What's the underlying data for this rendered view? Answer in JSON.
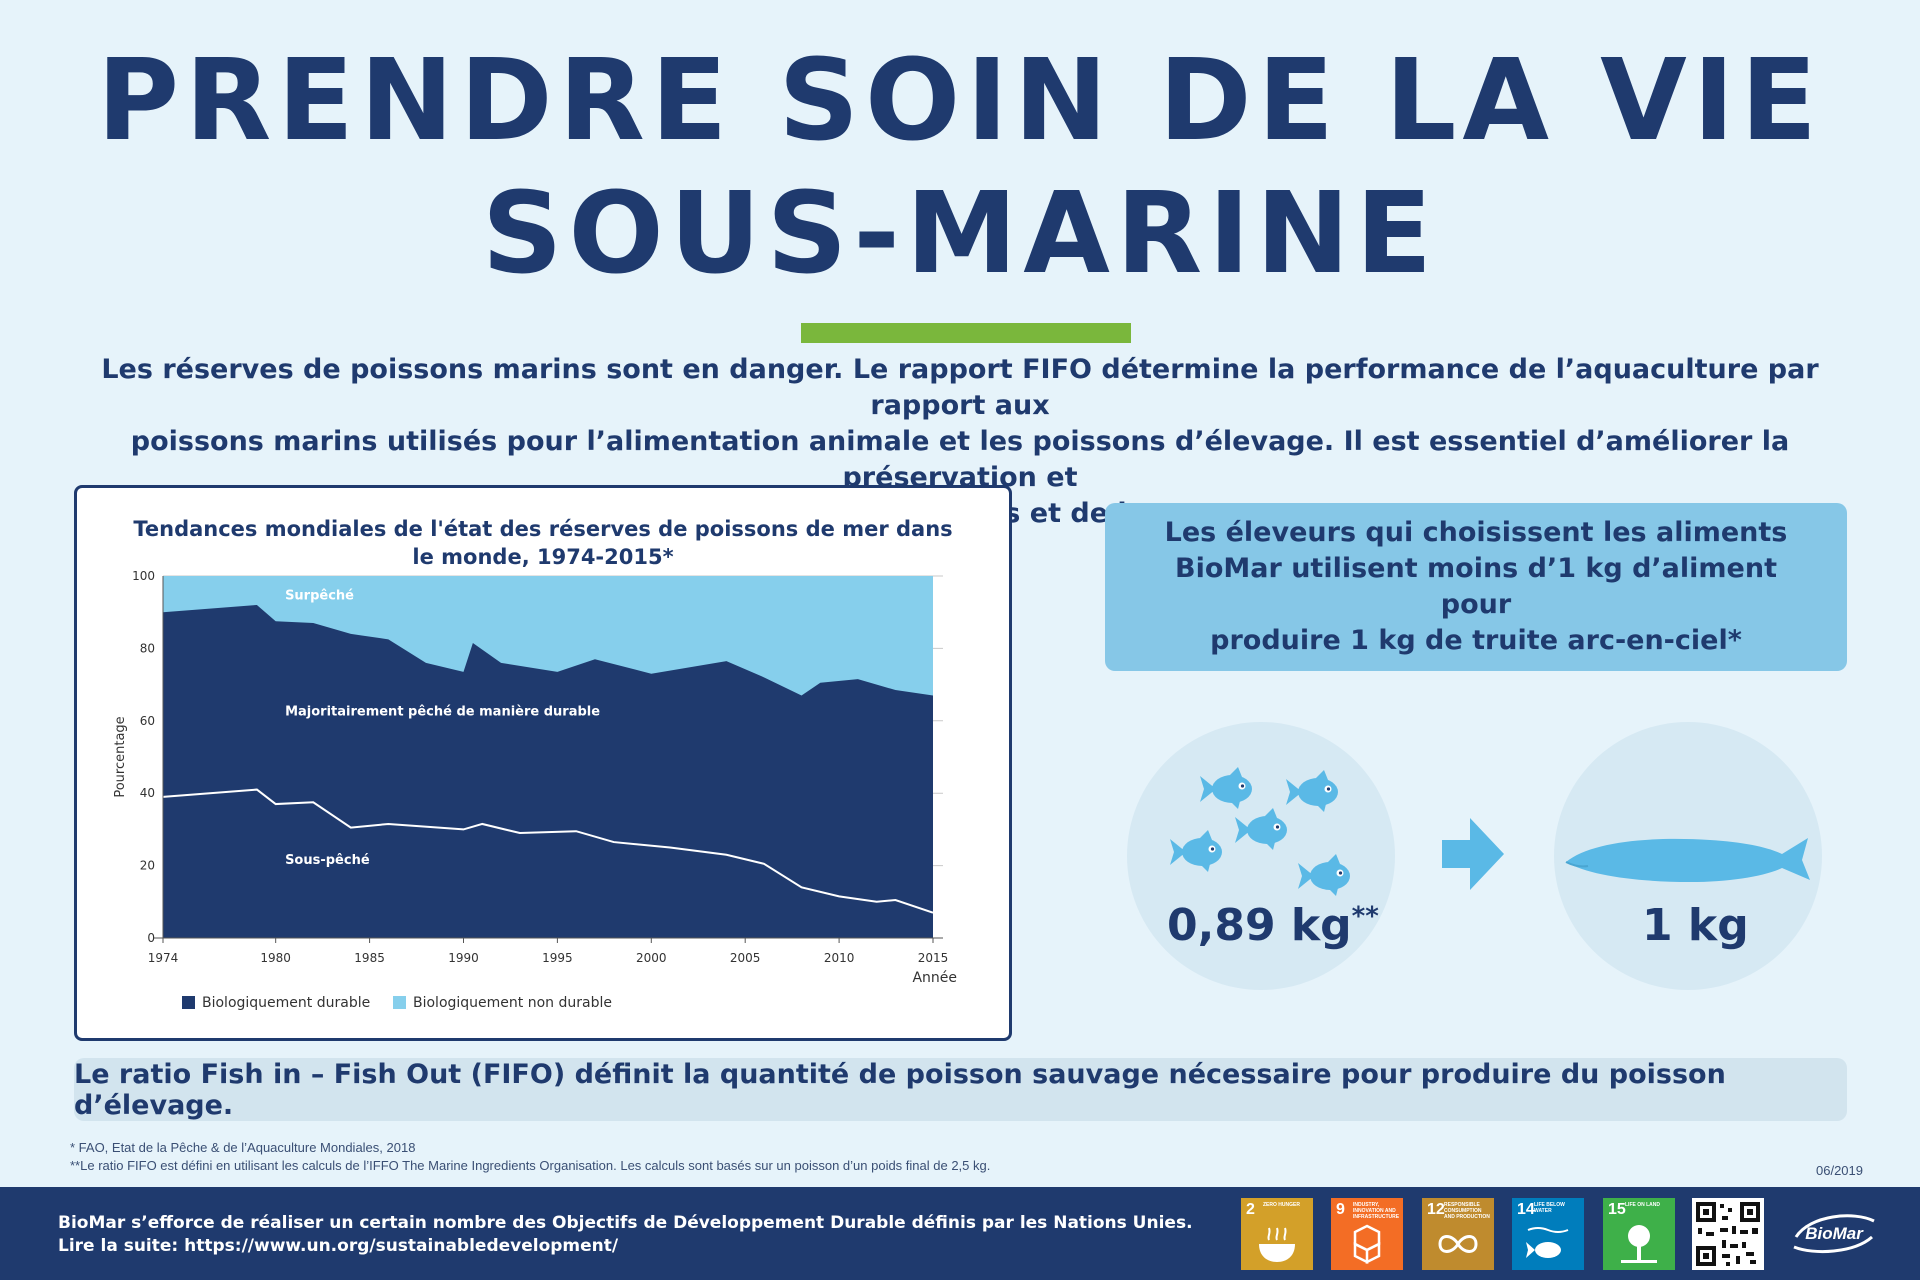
{
  "title": {
    "line1": "PRENDRE SOIN DE LA VIE",
    "line2": "SOUS-MARINE"
  },
  "intro": {
    "line1": "Les réserves de poissons marins sont en danger. Le rapport FIFO détermine la performance de l’aquaculture par rapport aux",
    "line2": "poissons marins utilisés pour l’alimentation animale et les poissons d’élevage. Il est essentiel d’améliorer la préservation et",
    "line3": "l’utilisation durable des océans et de leurs ressources."
  },
  "chart_data": {
    "type": "area",
    "title_line1": "Tendances mondiales de l'état des réserves de poissons de mer dans",
    "title_line2": "le monde, 1974-2015*",
    "xlabel": "Année",
    "ylabel": "Pourcentage",
    "xlim": [
      1974,
      2015
    ],
    "ylim": [
      0,
      100
    ],
    "x_ticks": [
      1974,
      1980,
      1985,
      1990,
      1995,
      2000,
      2005,
      2010,
      2015
    ],
    "y_ticks": [
      0,
      20,
      40,
      60,
      80,
      100
    ],
    "grid": true,
    "x": [
      1974,
      1979,
      1980,
      1982,
      1984,
      1986,
      1988,
      1990,
      1990.5,
      1992,
      1995,
      1997,
      2000,
      2004,
      2006,
      2008,
      2009,
      2011,
      2013,
      2015
    ],
    "series": [
      {
        "name": "Biologiquement durable",
        "color": "#1f3a6e",
        "values": [
          90.0,
          92.0,
          87.5,
          87.0,
          84.0,
          82.5,
          76.0,
          73.5,
          81.5,
          76.0,
          73.5,
          77.0,
          73.0,
          76.5,
          72.0,
          67.0,
          70.5,
          71.5,
          68.5,
          67.0
        ]
      },
      {
        "name": "Biologiquement non durable",
        "color": "#86cfec",
        "values": [
          10.0,
          8.0,
          12.5,
          13.0,
          16.0,
          17.5,
          24.0,
          26.5,
          18.5,
          24.0,
          26.5,
          23.0,
          27.0,
          23.5,
          28.0,
          33.0,
          29.5,
          28.5,
          31.5,
          33.0
        ]
      }
    ],
    "underfished_line": {
      "x": [
        1974,
        1979,
        1980,
        1982,
        1984,
        1986,
        1990,
        1991,
        1993,
        1996,
        1998,
        2001,
        2004,
        2006,
        2008,
        2010,
        2012,
        2013,
        2015
      ],
      "values": [
        39.0,
        41.0,
        37.0,
        37.5,
        30.5,
        31.5,
        30.0,
        31.5,
        29.0,
        29.5,
        26.5,
        25.0,
        23.0,
        20.5,
        14.0,
        11.5,
        10.0,
        10.5,
        7.0
      ]
    },
    "annotations": {
      "overfished": "Surpêché",
      "mostly_sustainable": "Majoritairement pêché de manière durable",
      "underfished": "Sous-pêché"
    },
    "legend_position": "bottom-left"
  },
  "info_box": {
    "line1": "Les éleveurs qui choisissent les aliments",
    "line2": "BioMar utilisent moins d’1 kg d’aliment pour",
    "line3": "produire 1 kg de truite arc-en-ciel*"
  },
  "feed": {
    "left_value": "0,89 kg",
    "left_marker": "**",
    "right_value": "1 kg",
    "fish_icon": "fish-icon",
    "arrow_icon": "arrow-right-icon",
    "trout_icon": "trout-icon"
  },
  "fifo": {
    "text": "Le ratio Fish in – Fish Out (FIFO) définit la quantité de poisson sauvage nécessaire pour produire du poisson d’élevage."
  },
  "footnotes": {
    "fn1": "* FAO, Etat de la Pêche & de l’Aquaculture Mondiales, 2018",
    "fn2": "**Le ratio FIFO est défini en utilisant les calculs de l’IFFO The Marine Ingredients Organisation. Les calculs sont basés sur un poisson d’un poids final de 2,5 kg.",
    "date": "06/2019"
  },
  "footer": {
    "line1": "BioMar s’efforce de réaliser un certain nombre des Objectifs de Développement Durable définis par les Nations Unies.",
    "line2": "Lire la suite: https://www.un.org/sustainabledevelopment/",
    "sdgs": [
      {
        "num": "2",
        "name": "ZERO HUNGER",
        "color": "#d3a029",
        "icon": "bowl-icon"
      },
      {
        "num": "9",
        "name": "INDUSTRY, INNOVATION AND INFRASTRUCTURE",
        "color": "#f36d25",
        "icon": "cubes-icon"
      },
      {
        "num": "12",
        "name": "RESPONSIBLE CONSUMPTION AND PRODUCTION",
        "color": "#bf8b2e",
        "icon": "infinity-icon"
      },
      {
        "num": "14",
        "name": "LIFE BELOW WATER",
        "color": "#007dbc",
        "icon": "fish-icon"
      },
      {
        "num": "15",
        "name": "LIFE ON LAND",
        "color": "#3eb049",
        "icon": "tree-icon"
      }
    ],
    "logo": "BioMar"
  }
}
